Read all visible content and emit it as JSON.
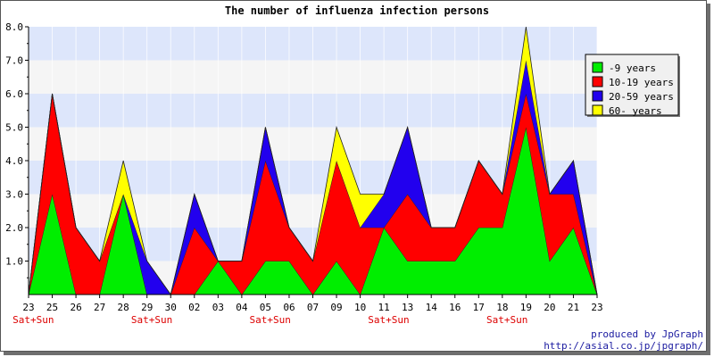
{
  "chart_data": {
    "type": "area",
    "stacked": true,
    "title": "The number of influenza infection persons",
    "xlabel": "",
    "ylabel": "",
    "ylim": [
      0,
      8
    ],
    "yticks": [
      "1.0",
      "2.0",
      "3.0",
      "4.0",
      "5.0",
      "6.0",
      "7.0",
      "8.0"
    ],
    "grid": "alternating horizontal bands",
    "legend_position": "right",
    "categories": [
      "23",
      "25",
      "26",
      "27",
      "28",
      "29",
      "30",
      "02",
      "03",
      "04",
      "05",
      "06",
      "07",
      "09",
      "10",
      "11",
      "13",
      "14",
      "16",
      "17",
      "18",
      "19",
      "20",
      "21",
      "23"
    ],
    "weekend_marks": [
      {
        "index": 0,
        "label": "Sat+Sun"
      },
      {
        "index": 5,
        "label": "Sat+Sun"
      },
      {
        "index": 10,
        "label": "Sat+Sun"
      },
      {
        "index": 15,
        "label": "Sat+Sun"
      },
      {
        "index": 20,
        "label": "Sat+Sun"
      }
    ],
    "series": [
      {
        "name": "-9 years",
        "color": "#00ee00",
        "values": [
          0,
          3,
          0,
          0,
          3,
          0,
          0,
          0,
          1,
          0,
          1,
          1,
          0,
          1,
          0,
          2,
          1,
          1,
          1,
          2,
          2,
          5,
          1,
          2,
          0
        ]
      },
      {
        "name": "10-19 years",
        "color": "#ff0000",
        "values": [
          0,
          3,
          2,
          1,
          0,
          0,
          0,
          2,
          0,
          1,
          3,
          1,
          1,
          3,
          2,
          0,
          2,
          1,
          1,
          2,
          1,
          1,
          2,
          1,
          0
        ]
      },
      {
        "name": "20-59 years",
        "color": "#2200ee",
        "values": [
          0,
          0,
          0,
          0,
          0,
          1,
          0,
          1,
          0,
          0,
          1,
          0,
          0,
          0,
          0,
          1,
          2,
          0,
          0,
          0,
          0,
          1,
          0,
          1,
          0
        ]
      },
      {
        "name": "60- years",
        "color": "#ffff00",
        "values": [
          0,
          0,
          0,
          0,
          1,
          0,
          0,
          0,
          0,
          0,
          0,
          0,
          0,
          1,
          1,
          0,
          0,
          0,
          0,
          0,
          0,
          1,
          0,
          0,
          0
        ]
      }
    ],
    "band_colors": [
      "#f5f5f5",
      "#dde6fb"
    ]
  },
  "credits": {
    "line1": "produced by JpGraph",
    "line2": "http://asial.co.jp/jpgraph/"
  }
}
